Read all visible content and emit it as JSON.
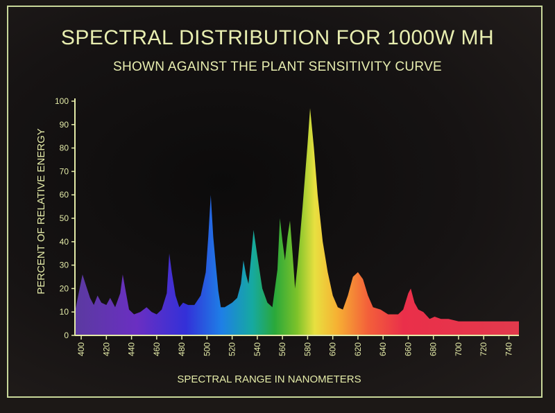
{
  "chart_data": {
    "type": "area",
    "title": "SPECTRAL DISTRIBUTION FOR 1000W MH",
    "subtitle": "SHOWN AGAINST THE PLANT SENSITIVITY CURVE",
    "xlabel": "SPECTRAL RANGE IN NANOMETERS",
    "ylabel": "PERCENT OF RELATIVE ENERGY",
    "xlim": [
      395,
      748
    ],
    "ylim": [
      0,
      100
    ],
    "x_ticks": [
      400,
      420,
      440,
      460,
      480,
      500,
      520,
      540,
      560,
      580,
      600,
      620,
      640,
      660,
      680,
      700,
      720,
      740
    ],
    "y_ticks": [
      0,
      10,
      20,
      30,
      40,
      50,
      60,
      70,
      80,
      90,
      100
    ],
    "grid": false,
    "fill": "rainbow by wavelength",
    "series": [
      {
        "points": [
          [
            395,
            10
          ],
          [
            398,
            18
          ],
          [
            401,
            26
          ],
          [
            404,
            21
          ],
          [
            407,
            16
          ],
          [
            410,
            13
          ],
          [
            413,
            17
          ],
          [
            416,
            14
          ],
          [
            420,
            13
          ],
          [
            423,
            16
          ],
          [
            427,
            12
          ],
          [
            431,
            18
          ],
          [
            433,
            26
          ],
          [
            435,
            20
          ],
          [
            438,
            11
          ],
          [
            442,
            9
          ],
          [
            447,
            10
          ],
          [
            452,
            12
          ],
          [
            456,
            10
          ],
          [
            460,
            9
          ],
          [
            464,
            11
          ],
          [
            468,
            18
          ],
          [
            470,
            35
          ],
          [
            472,
            27
          ],
          [
            475,
            17
          ],
          [
            478,
            12
          ],
          [
            481,
            14
          ],
          [
            485,
            13
          ],
          [
            490,
            13
          ],
          [
            495,
            17
          ],
          [
            499,
            27
          ],
          [
            501,
            42
          ],
          [
            503,
            60
          ],
          [
            505,
            42
          ],
          [
            507,
            30
          ],
          [
            509,
            19
          ],
          [
            511,
            12
          ],
          [
            514,
            12
          ],
          [
            517,
            13
          ],
          [
            520,
            14
          ],
          [
            524,
            16
          ],
          [
            527,
            22
          ],
          [
            529,
            32
          ],
          [
            531,
            26
          ],
          [
            533,
            22
          ],
          [
            535,
            33
          ],
          [
            537,
            45
          ],
          [
            540,
            34
          ],
          [
            544,
            20
          ],
          [
            548,
            14
          ],
          [
            552,
            12
          ],
          [
            556,
            28
          ],
          [
            558,
            50
          ],
          [
            560,
            40
          ],
          [
            562,
            32
          ],
          [
            564,
            42
          ],
          [
            566,
            49
          ],
          [
            568,
            35
          ],
          [
            570,
            20
          ],
          [
            572,
            30
          ],
          [
            576,
            55
          ],
          [
            580,
            82
          ],
          [
            582,
            97
          ],
          [
            585,
            80
          ],
          [
            588,
            60
          ],
          [
            592,
            40
          ],
          [
            596,
            27
          ],
          [
            600,
            17
          ],
          [
            604,
            12
          ],
          [
            608,
            11
          ],
          [
            612,
            17
          ],
          [
            616,
            25
          ],
          [
            620,
            27
          ],
          [
            624,
            24
          ],
          [
            628,
            17
          ],
          [
            632,
            12
          ],
          [
            638,
            11
          ],
          [
            644,
            9
          ],
          [
            648,
            9
          ],
          [
            652,
            9
          ],
          [
            656,
            11
          ],
          [
            660,
            18
          ],
          [
            662,
            20
          ],
          [
            665,
            14
          ],
          [
            668,
            11
          ],
          [
            672,
            10
          ],
          [
            677,
            7
          ],
          [
            681,
            8
          ],
          [
            686,
            7
          ],
          [
            692,
            7
          ],
          [
            700,
            6
          ],
          [
            710,
            6
          ],
          [
            720,
            6
          ],
          [
            735,
            6
          ],
          [
            748,
            6
          ]
        ]
      }
    ]
  }
}
